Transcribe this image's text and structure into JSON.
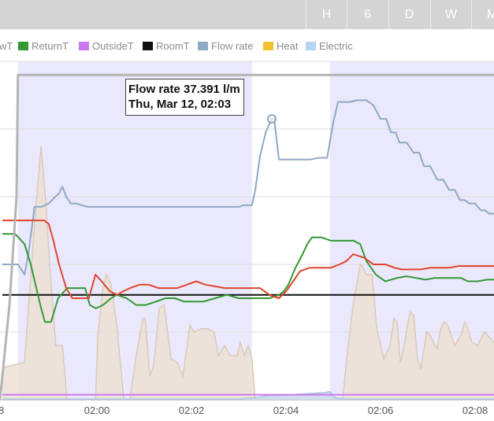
{
  "range_buttons": [
    "H",
    "6",
    "D",
    "W",
    "M"
  ],
  "legend": [
    {
      "label": "wT",
      "color": "#e0442c",
      "style": "none"
    },
    {
      "label": "ReturnT",
      "color": "#339933",
      "style": "solid"
    },
    {
      "label": "OutsideT",
      "color": "#cc77ee",
      "style": "solid"
    },
    {
      "label": "RoomT",
      "color": "#111111",
      "style": "solid"
    },
    {
      "label": "Flow rate",
      "color": "#8fa9c4",
      "style": "solid"
    },
    {
      "label": "Heat",
      "color": "#f0c232",
      "style": "solid"
    },
    {
      "label": "Electric",
      "color": "#b7d5f3",
      "style": "solid"
    }
  ],
  "tooltip": {
    "line1": "Flow rate 37.391 l/m",
    "line2": "Thu, Mar 12, 02:03"
  },
  "chart_data": {
    "type": "line",
    "x_unit": "minutes after 01:58 (Thu, Mar 12)",
    "xlim": [
      -0.05,
      10.4
    ],
    "ylim": [
      0,
      100
    ],
    "x_ticks": [
      {
        "x": 2,
        "label": "02:00"
      },
      {
        "x": 4,
        "label": "02:02"
      },
      {
        "x": 6,
        "label": "02:04"
      },
      {
        "x": 8,
        "label": "02:06"
      },
      {
        "x": 10,
        "label": "02:08"
      }
    ],
    "first_tick_label_partial": "8",
    "grid": {
      "horizontal": true,
      "vertical": false
    },
    "background_bands": [
      {
        "x_start": 0.33,
        "x_end": 5.28,
        "color": "#eae8fc"
      },
      {
        "x_start": 6.93,
        "x_end": 10.4,
        "color": "#eae8fc"
      }
    ],
    "series": [
      {
        "name": "Heat",
        "color": "#f0c232",
        "fill": "#ece0d4",
        "stroke": "#dbc9b8",
        "kind": "area",
        "x": [
          0.0,
          0.47,
          0.68,
          0.82,
          0.92,
          1.0,
          1.13,
          1.27,
          1.37,
          1.42,
          1.48,
          1.56,
          1.97,
          2.02,
          2.12,
          2.2,
          2.3,
          2.42,
          2.57,
          2.7,
          2.82,
          2.97,
          3.02,
          3.12,
          3.2,
          3.32,
          3.42,
          3.57,
          3.7,
          3.82,
          3.97,
          4.06,
          4.2,
          4.35,
          4.48,
          4.57,
          4.7,
          4.82,
          4.97,
          5.03,
          5.12,
          5.2,
          5.28,
          5.35,
          5.45,
          5.52,
          5.55,
          6.0,
          6.5,
          6.8,
          7.05,
          7.2,
          7.3,
          7.42,
          7.57,
          7.63,
          7.7,
          7.82,
          7.92,
          8.07,
          8.2,
          8.28,
          8.35,
          8.42,
          8.5,
          8.57,
          8.63,
          8.7,
          8.78,
          8.85,
          8.92,
          8.98,
          9.05,
          9.12,
          9.2,
          9.27,
          9.35,
          9.42,
          9.57,
          9.7,
          9.78,
          9.85,
          9.93,
          10.05,
          10.2,
          10.4
        ],
        "values": [
          9.5,
          11.0,
          52.0,
          75.0,
          58.0,
          40.0,
          16.0,
          16.0,
          0.0,
          0.0,
          0.0,
          0.0,
          0.0,
          19.0,
          32.0,
          37.0,
          34.0,
          22.0,
          0.0,
          0.0,
          12.0,
          24.0,
          24.0,
          7.0,
          10.0,
          27.0,
          28.0,
          12.0,
          11.0,
          7.0,
          22.0,
          20.0,
          21.0,
          21.0,
          20.0,
          13.0,
          16.0,
          13.0,
          13.0,
          17.0,
          13.0,
          16.0,
          12.0,
          0.0,
          0.0,
          0.0,
          0.0,
          0.0,
          0.0,
          0.0,
          0.0,
          0.0,
          14.0,
          28.0,
          40.0,
          39.0,
          37.0,
          37.0,
          21.0,
          12.0,
          16.0,
          24.0,
          23.0,
          11.0,
          16.0,
          22.0,
          26.0,
          25.0,
          12.0,
          9.0,
          15.0,
          20.0,
          19.0,
          17.0,
          15.0,
          21.0,
          23.0,
          22.0,
          16.0,
          19.0,
          23.0,
          21.0,
          17.0,
          16.0,
          20.0,
          17.0
        ]
      },
      {
        "name": "Electric",
        "color": "#b7d5f3",
        "fill": "#c8d8ea",
        "stroke": "#a9c3de",
        "kind": "area",
        "x": [
          0.0,
          0.4,
          1.2,
          2.0,
          3.0,
          4.0,
          5.0,
          5.3,
          5.6,
          6.0,
          6.3,
          6.8,
          6.93,
          7.05,
          7.3,
          8.0,
          9.0,
          10.0,
          10.4
        ],
        "values": [
          0.2,
          0.2,
          0.2,
          0.2,
          0.2,
          0.2,
          0.2,
          0.5,
          1.2,
          1.4,
          1.7,
          2.1,
          2.4,
          0.5,
          0.2,
          0.2,
          0.2,
          0.2,
          0.2
        ]
      },
      {
        "name": "Flow rate",
        "color": "#8fa9c4",
        "kind": "line",
        "x": [
          0.0,
          0.2,
          0.33,
          0.47,
          0.55,
          0.68,
          0.82,
          0.98,
          1.05,
          1.12,
          1.2,
          1.27,
          1.35,
          1.45,
          1.56,
          1.8,
          2.2,
          2.6,
          3.0,
          3.4,
          3.8,
          4.2,
          4.6,
          4.9,
          5.0,
          5.1,
          5.2,
          5.28,
          5.35,
          5.45,
          5.57,
          5.7,
          5.75,
          5.8,
          5.85,
          6.0,
          6.5,
          6.7,
          6.82,
          6.87,
          7.0,
          7.1,
          7.17,
          7.35,
          7.5,
          7.62,
          7.7,
          7.85,
          8.0,
          8.12,
          8.22,
          8.32,
          8.4,
          8.55,
          8.7,
          8.82,
          8.92,
          9.05,
          9.2,
          9.33,
          9.45,
          9.57,
          9.68,
          9.78,
          9.88,
          10.0,
          10.12,
          10.2,
          10.3,
          10.4
        ],
        "values": [
          40.0,
          40.0,
          40.0,
          37.0,
          43.0,
          57.0,
          57.0,
          58.0,
          59.0,
          60.0,
          61.0,
          63.0,
          60.0,
          58.0,
          58.0,
          57.0,
          57.0,
          57.0,
          57.0,
          57.0,
          57.0,
          57.0,
          57.0,
          57.0,
          57.0,
          57.5,
          57.5,
          57.5,
          62.0,
          72.0,
          79.0,
          83.0,
          83.0,
          77.0,
          71.0,
          71.0,
          71.0,
          71.5,
          71.5,
          71.5,
          82.0,
          88.0,
          88.0,
          88.0,
          88.5,
          88.5,
          88.5,
          87.0,
          83.0,
          83.0,
          79.0,
          79.0,
          76.0,
          76.0,
          73.0,
          73.0,
          69.0,
          69.0,
          65.0,
          65.0,
          62.0,
          62.0,
          59.0,
          59.0,
          58.0,
          58.0,
          56.0,
          56.0,
          55.0,
          55.0
        ]
      },
      {
        "name": "RoomT",
        "color": "#111111",
        "kind": "line",
        "x": [
          0.0,
          10.4
        ],
        "values": [
          31.0,
          31.0
        ]
      },
      {
        "name": "ReturnT",
        "color": "#339933",
        "kind": "line",
        "x": [
          0.0,
          0.27,
          0.47,
          0.6,
          0.82,
          0.9,
          1.03,
          1.18,
          1.37,
          1.47,
          1.75,
          1.85,
          1.98,
          2.13,
          2.3,
          2.42,
          2.63,
          2.83,
          3.03,
          3.25,
          3.45,
          3.65,
          3.85,
          4.05,
          4.25,
          4.5,
          4.75,
          5.0,
          5.25,
          5.45,
          5.65,
          5.85,
          5.95,
          6.05,
          6.2,
          6.35,
          6.45,
          6.55,
          6.75,
          6.95,
          7.2,
          7.43,
          7.57,
          7.7,
          7.9,
          8.1,
          8.35,
          8.55,
          8.75,
          8.95,
          9.15,
          9.35,
          9.55,
          9.7,
          9.85,
          10.05,
          10.25,
          10.4
        ],
        "values": [
          49.0,
          49.0,
          46.0,
          40.0,
          27.0,
          23.0,
          23.0,
          30.0,
          33.0,
          33.0,
          33.0,
          28.0,
          27.0,
          28.0,
          30.0,
          31.0,
          30.0,
          28.0,
          28.0,
          29.0,
          30.0,
          30.0,
          29.0,
          29.0,
          29.0,
          30.0,
          31.0,
          30.0,
          30.0,
          30.0,
          30.0,
          31.0,
          32.0,
          34.0,
          39.0,
          43.0,
          46.0,
          48.0,
          48.0,
          47.0,
          47.0,
          47.0,
          46.0,
          41.0,
          37.0,
          35.0,
          36.0,
          36.5,
          36.0,
          35.5,
          36.0,
          36.0,
          36.0,
          36.0,
          35.0,
          35.0,
          35.5,
          35.5
        ]
      },
      {
        "name": "wT",
        "color": "#e0442c",
        "kind": "line",
        "x": [
          0.0,
          0.2,
          0.33,
          0.47,
          0.62,
          0.73,
          0.88,
          0.98,
          1.08,
          1.2,
          1.35,
          1.48,
          1.58,
          1.83,
          1.97,
          2.1,
          2.28,
          2.43,
          2.55,
          2.7,
          2.9,
          3.1,
          3.3,
          3.5,
          3.7,
          3.9,
          4.1,
          4.3,
          4.5,
          4.7,
          4.9,
          5.15,
          5.35,
          5.45,
          5.65,
          5.75,
          5.85,
          6.0,
          6.15,
          6.3,
          6.5,
          6.75,
          6.95,
          7.13,
          7.28,
          7.42,
          7.65,
          7.85,
          8.1,
          8.3,
          8.45,
          8.65,
          8.85,
          9.05,
          9.25,
          9.45,
          9.65,
          9.85,
          10.05,
          10.25,
          10.4
        ],
        "values": [
          53.0,
          53.0,
          53.0,
          53.0,
          53.0,
          53.0,
          53.0,
          52.0,
          47.0,
          40.0,
          33.0,
          30.0,
          30.0,
          30.0,
          37.0,
          35.0,
          32.0,
          31.0,
          32.0,
          33.0,
          34.0,
          34.0,
          33.0,
          33.0,
          33.0,
          34.0,
          35.0,
          34.0,
          33.5,
          33.0,
          33.0,
          33.0,
          33.0,
          33.0,
          31.0,
          30.5,
          30.0,
          32.0,
          35.0,
          38.0,
          39.0,
          39.0,
          39.0,
          40.0,
          41.0,
          43.0,
          42.0,
          40.0,
          40.0,
          39.0,
          38.5,
          38.5,
          38.5,
          39.0,
          39.0,
          39.0,
          39.5,
          39.5,
          39.5,
          39.5,
          39.5
        ]
      },
      {
        "name": "OutsideT",
        "color": "#cc77ee",
        "kind": "line",
        "x": [
          0.0,
          10.4
        ],
        "values": [
          1.5,
          1.5
        ]
      },
      {
        "name": "Gray top line",
        "color": "#b4b4b4",
        "kind": "line",
        "x": [
          -0.05,
          0.15,
          0.3,
          0.33,
          0.4,
          10.4
        ],
        "values": [
          0.0,
          28.0,
          60.0,
          96.0,
          96.0,
          96.0
        ]
      }
    ],
    "hover_marker": {
      "series": "Flow rate",
      "x": 5.7,
      "value": 83.0
    }
  }
}
